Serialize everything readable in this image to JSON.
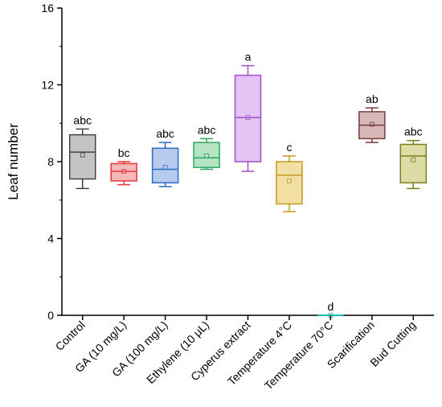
{
  "chart_data": {
    "type": "box",
    "title": "",
    "xlabel": "",
    "ylabel": "Leaf number",
    "ylim": [
      0,
      16
    ],
    "yticks": [
      0,
      4,
      8,
      12,
      16
    ],
    "grid": false,
    "legend": "none",
    "categories": [
      "Control",
      "GA (10 mg/L)",
      "GA (100 mg/L)",
      "Ethylene (10 μL)",
      "Cyperus extract",
      "Temperature 4°C",
      "Temperature 70°C",
      "Scarification",
      "Bud Cutting"
    ],
    "boxes": [
      {
        "label": "Control",
        "whisker_low": 6.6,
        "q1": 7.1,
        "median": 8.5,
        "q3": 9.4,
        "whisker_high": 9.7,
        "mean": 8.35,
        "significance": "abc",
        "color": "#444444",
        "fill": "#c4c4c4"
      },
      {
        "label": "GA (10 mg/L)",
        "whisker_low": 6.8,
        "q1": 7.0,
        "median": 7.5,
        "q3": 7.9,
        "whisker_high": 8.0,
        "mean": 7.5,
        "significance": "bc",
        "color": "#e5373a",
        "fill": "#f6b8b8"
      },
      {
        "label": "GA (100 mg/L)",
        "whisker_low": 6.7,
        "q1": 6.9,
        "median": 7.6,
        "q3": 8.7,
        "whisker_high": 9.0,
        "mean": 7.7,
        "significance": "abc",
        "color": "#2f6dc4",
        "fill": "#b6cbee"
      },
      {
        "label": "Ethylene (10 μL)",
        "whisker_low": 7.6,
        "q1": 7.7,
        "median": 8.2,
        "q3": 9.0,
        "whisker_high": 9.2,
        "mean": 8.3,
        "significance": "abc",
        "color": "#2aa760",
        "fill": "#b5e3c4"
      },
      {
        "label": "Cyperus extract",
        "whisker_low": 7.5,
        "q1": 8.0,
        "median": 10.3,
        "q3": 12.5,
        "whisker_high": 13.0,
        "mean": 10.3,
        "significance": "a",
        "color": "#a24fc7",
        "fill": "#e3c2f4"
      },
      {
        "label": "Temperature 4°C",
        "whisker_low": 5.4,
        "q1": 5.8,
        "median": 7.3,
        "q3": 8.0,
        "whisker_high": 8.3,
        "mean": 7.0,
        "significance": "c",
        "color": "#c69a19",
        "fill": "#f2dfa4"
      },
      {
        "label": "Temperature 70°C",
        "whisker_low": 0,
        "q1": 0,
        "median": 0,
        "q3": 0,
        "whisker_high": 0,
        "mean": 0,
        "significance": "d",
        "color": "#1ab8b4",
        "fill": "#a9e6e4"
      },
      {
        "label": "Scarification",
        "whisker_low": 9.0,
        "q1": 9.2,
        "median": 9.9,
        "q3": 10.6,
        "whisker_high": 10.8,
        "mean": 9.95,
        "significance": "ab",
        "color": "#7a3a3a",
        "fill": "#d7b8b8"
      },
      {
        "label": "Bud Cutting",
        "whisker_low": 6.6,
        "q1": 6.9,
        "median": 8.3,
        "q3": 8.9,
        "whisker_high": 9.1,
        "mean": 8.1,
        "significance": "abc",
        "color": "#7e7e1c",
        "fill": "#dcdca6"
      }
    ]
  }
}
